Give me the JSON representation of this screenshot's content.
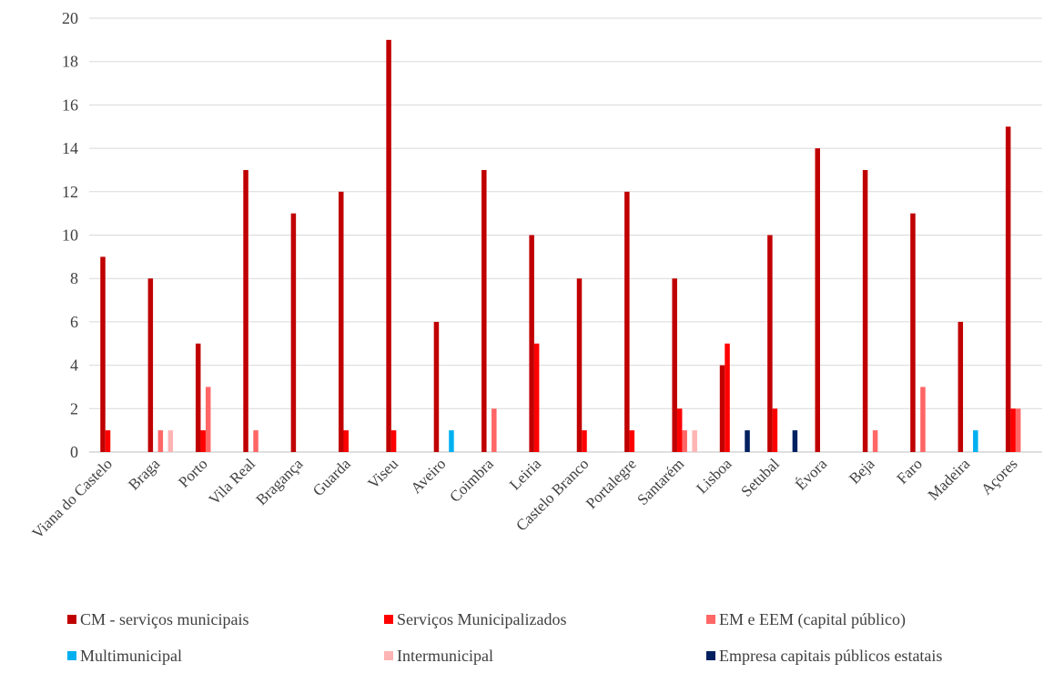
{
  "chart_data": {
    "type": "bar",
    "title": "",
    "xlabel": "",
    "ylabel": "",
    "ylim": [
      0,
      20
    ],
    "yticks": [
      "0",
      "2",
      "4",
      "6",
      "8",
      "10",
      "12",
      "14",
      "16",
      "18",
      "20"
    ],
    "grid": true,
    "legend_position": "bottom",
    "categories": [
      "Viana do Castelo",
      "Braga",
      "Porto",
      "Vila Real",
      "Bragança",
      "Guarda",
      "Viseu",
      "Aveiro",
      "Coimbra",
      "Leiria",
      "Castelo Branco",
      "Portalegre",
      "Santarém",
      "Lisboa",
      "Setubal",
      "Évora",
      "Beja",
      "Faro",
      "Madeira",
      "Açores"
    ],
    "series": [
      {
        "name": "CM - serviços municipais",
        "color": "#c00000",
        "values": [
          9,
          8,
          5,
          13,
          11,
          12,
          19,
          6,
          13,
          10,
          8,
          12,
          8,
          4,
          10,
          14,
          13,
          11,
          6,
          15
        ]
      },
      {
        "name": "Serviços Municipalizados",
        "color": "#ff0000",
        "values": [
          1,
          0,
          1,
          0,
          0,
          1,
          1,
          0,
          0,
          5,
          1,
          1,
          2,
          5,
          2,
          0,
          0,
          0,
          0,
          2
        ]
      },
      {
        "name": "EM e EEM (capital público)",
        "color": "#ff6666",
        "values": [
          0,
          1,
          3,
          1,
          0,
          0,
          0,
          0,
          2,
          0,
          0,
          0,
          1,
          0,
          0,
          0,
          1,
          3,
          0,
          2
        ]
      },
      {
        "name": "Multimunicipal",
        "color": "#00b0f0",
        "values": [
          0,
          0,
          0,
          0,
          0,
          0,
          0,
          1,
          0,
          0,
          0,
          0,
          0,
          0,
          0,
          0,
          0,
          0,
          1,
          0
        ]
      },
      {
        "name": "Intermunicipal",
        "color": "#ffb3b3",
        "values": [
          0,
          1,
          0,
          0,
          0,
          0,
          0,
          0,
          0,
          0,
          0,
          0,
          1,
          0,
          0,
          0,
          0,
          0,
          0,
          0
        ]
      },
      {
        "name": "Empresa capitais públicos estatais",
        "color": "#002060",
        "values": [
          0,
          0,
          0,
          0,
          0,
          0,
          0,
          0,
          0,
          0,
          0,
          0,
          0,
          1,
          1,
          0,
          0,
          0,
          0,
          0
        ]
      }
    ]
  }
}
